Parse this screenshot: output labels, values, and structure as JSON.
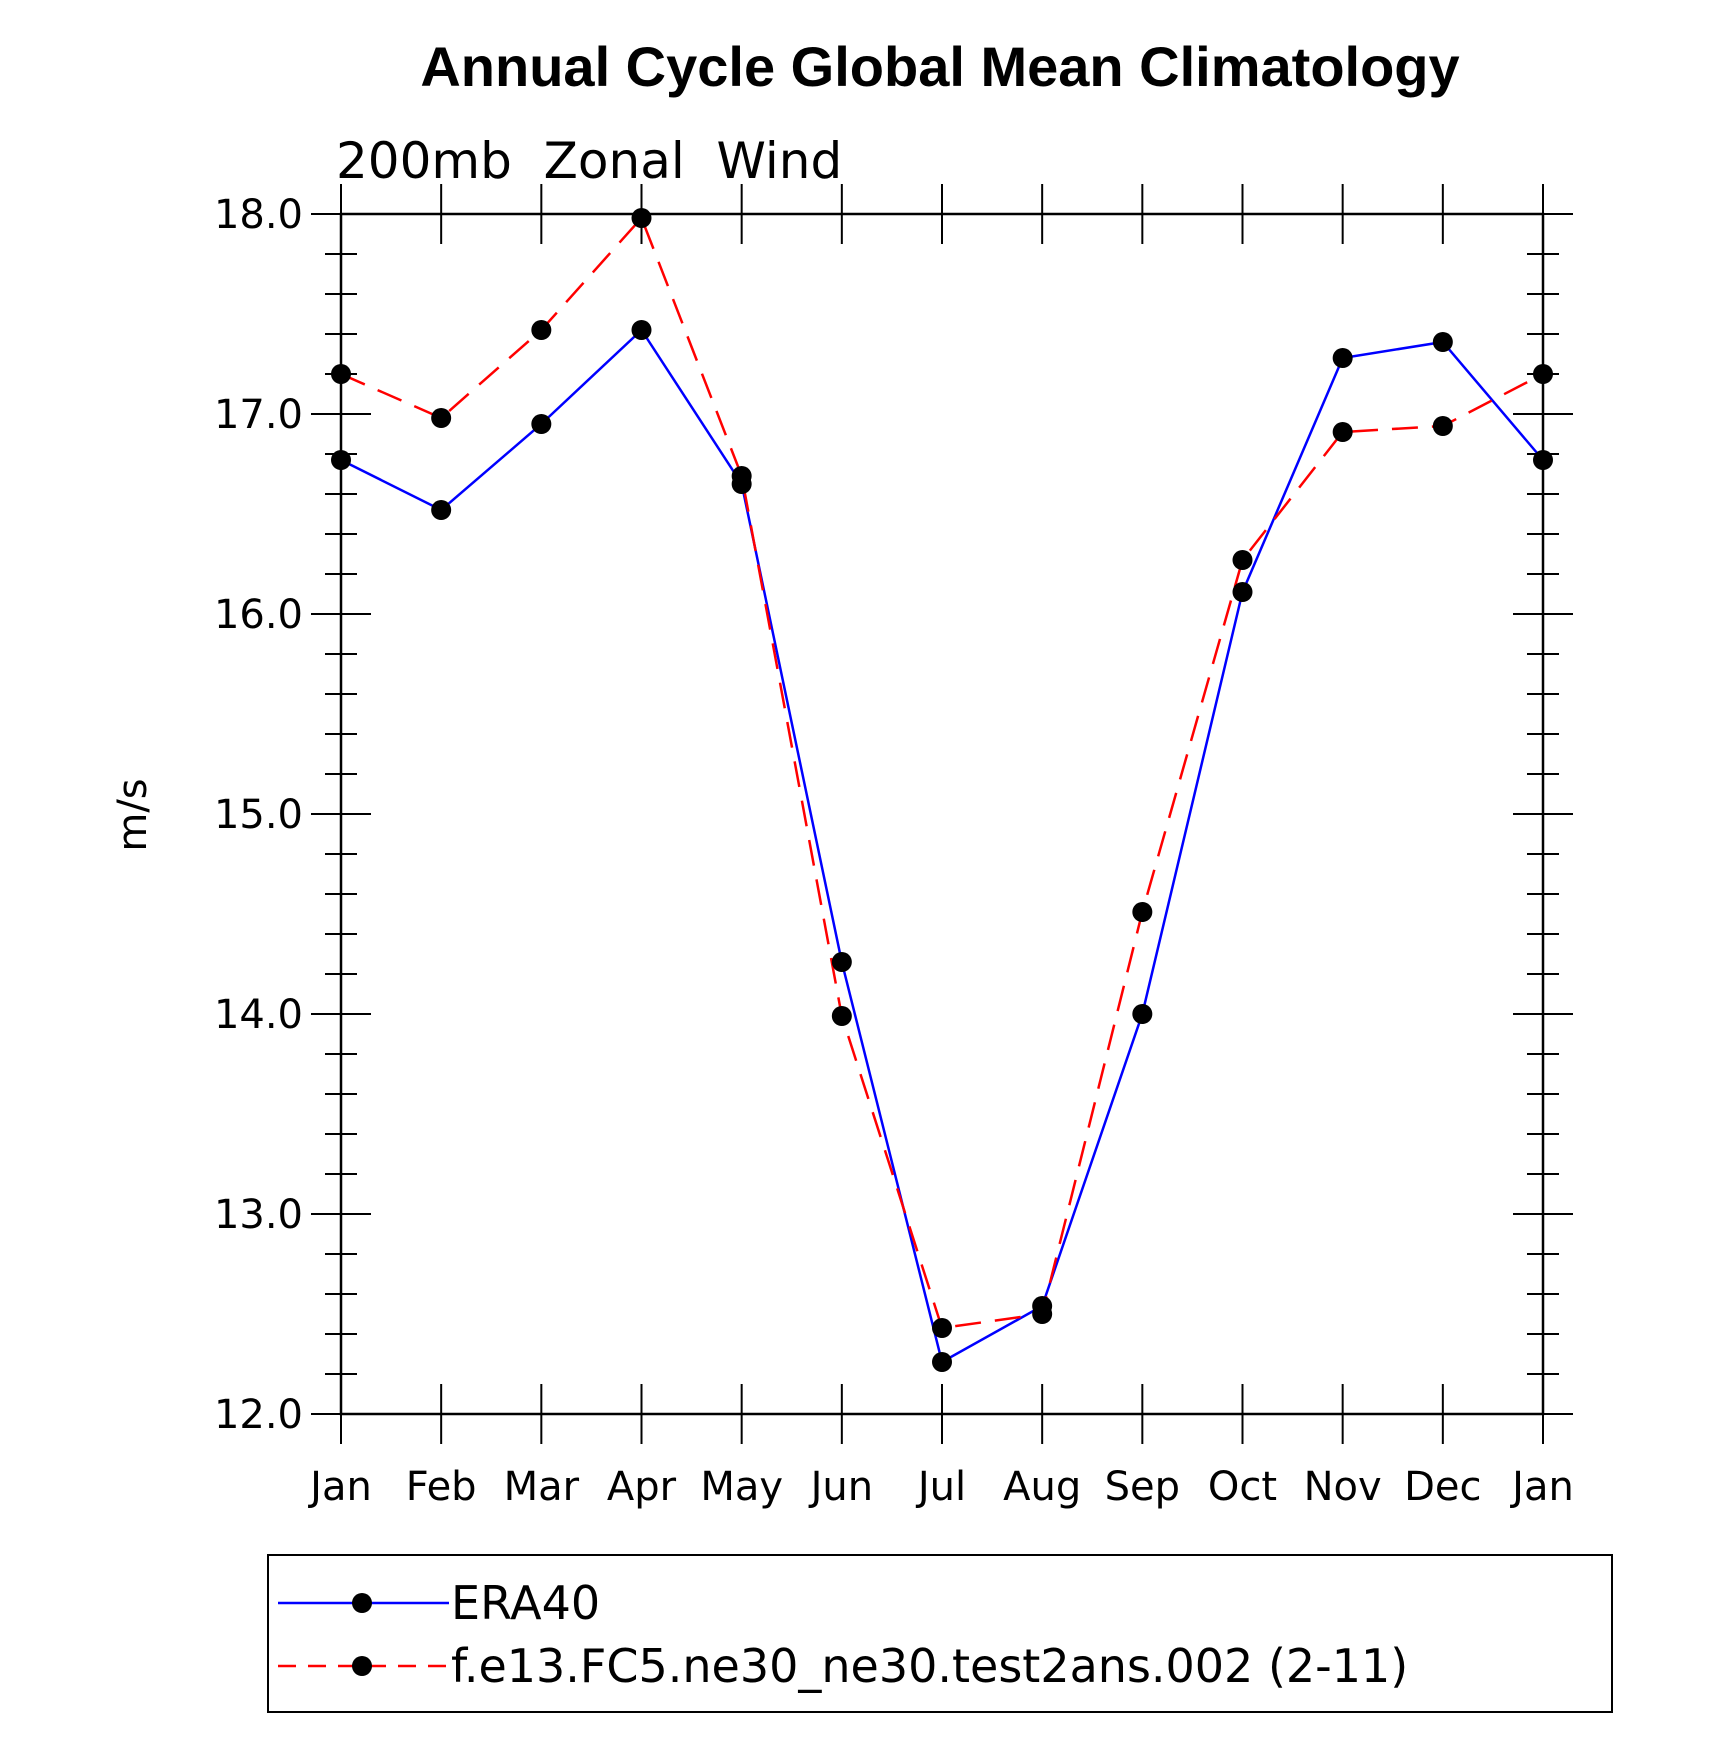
{
  "chart_data": {
    "type": "line",
    "title": "Annual Cycle Global Mean Climatology",
    "subtitle": "200mb  Zonal  Wind",
    "xlabel": "",
    "ylabel": "m/s",
    "categories": [
      "Jan",
      "Feb",
      "Mar",
      "Apr",
      "May",
      "Jun",
      "Jul",
      "Aug",
      "Sep",
      "Oct",
      "Nov",
      "Dec",
      "Jan"
    ],
    "ylim": [
      12.0,
      18.0
    ],
    "yticks": [
      12.0,
      13.0,
      14.0,
      15.0,
      16.0,
      17.0,
      18.0
    ],
    "ytick_labels": [
      "12.0",
      "13.0",
      "14.0",
      "15.0",
      "16.0",
      "17.0",
      "18.0"
    ],
    "grid": false,
    "legend_position": "bottom",
    "series": [
      {
        "name": "ERA40",
        "color": "#0000ff",
        "line_style": "solid",
        "marker": "filled-circle",
        "marker_color": "#000000",
        "values": [
          16.77,
          16.52,
          16.95,
          17.42,
          16.65,
          14.26,
          12.26,
          12.54,
          14.0,
          16.11,
          17.28,
          17.36,
          16.77
        ]
      },
      {
        "name": "f.e13.FC5.ne30_ne30.test2ans.002 (2-11)",
        "color": "#ff0000",
        "line_style": "dashed",
        "marker": "filled-circle",
        "marker_color": "#000000",
        "values": [
          17.2,
          16.98,
          17.42,
          17.98,
          16.69,
          13.99,
          12.43,
          12.5,
          14.51,
          16.27,
          16.91,
          16.94,
          17.2
        ]
      }
    ]
  }
}
